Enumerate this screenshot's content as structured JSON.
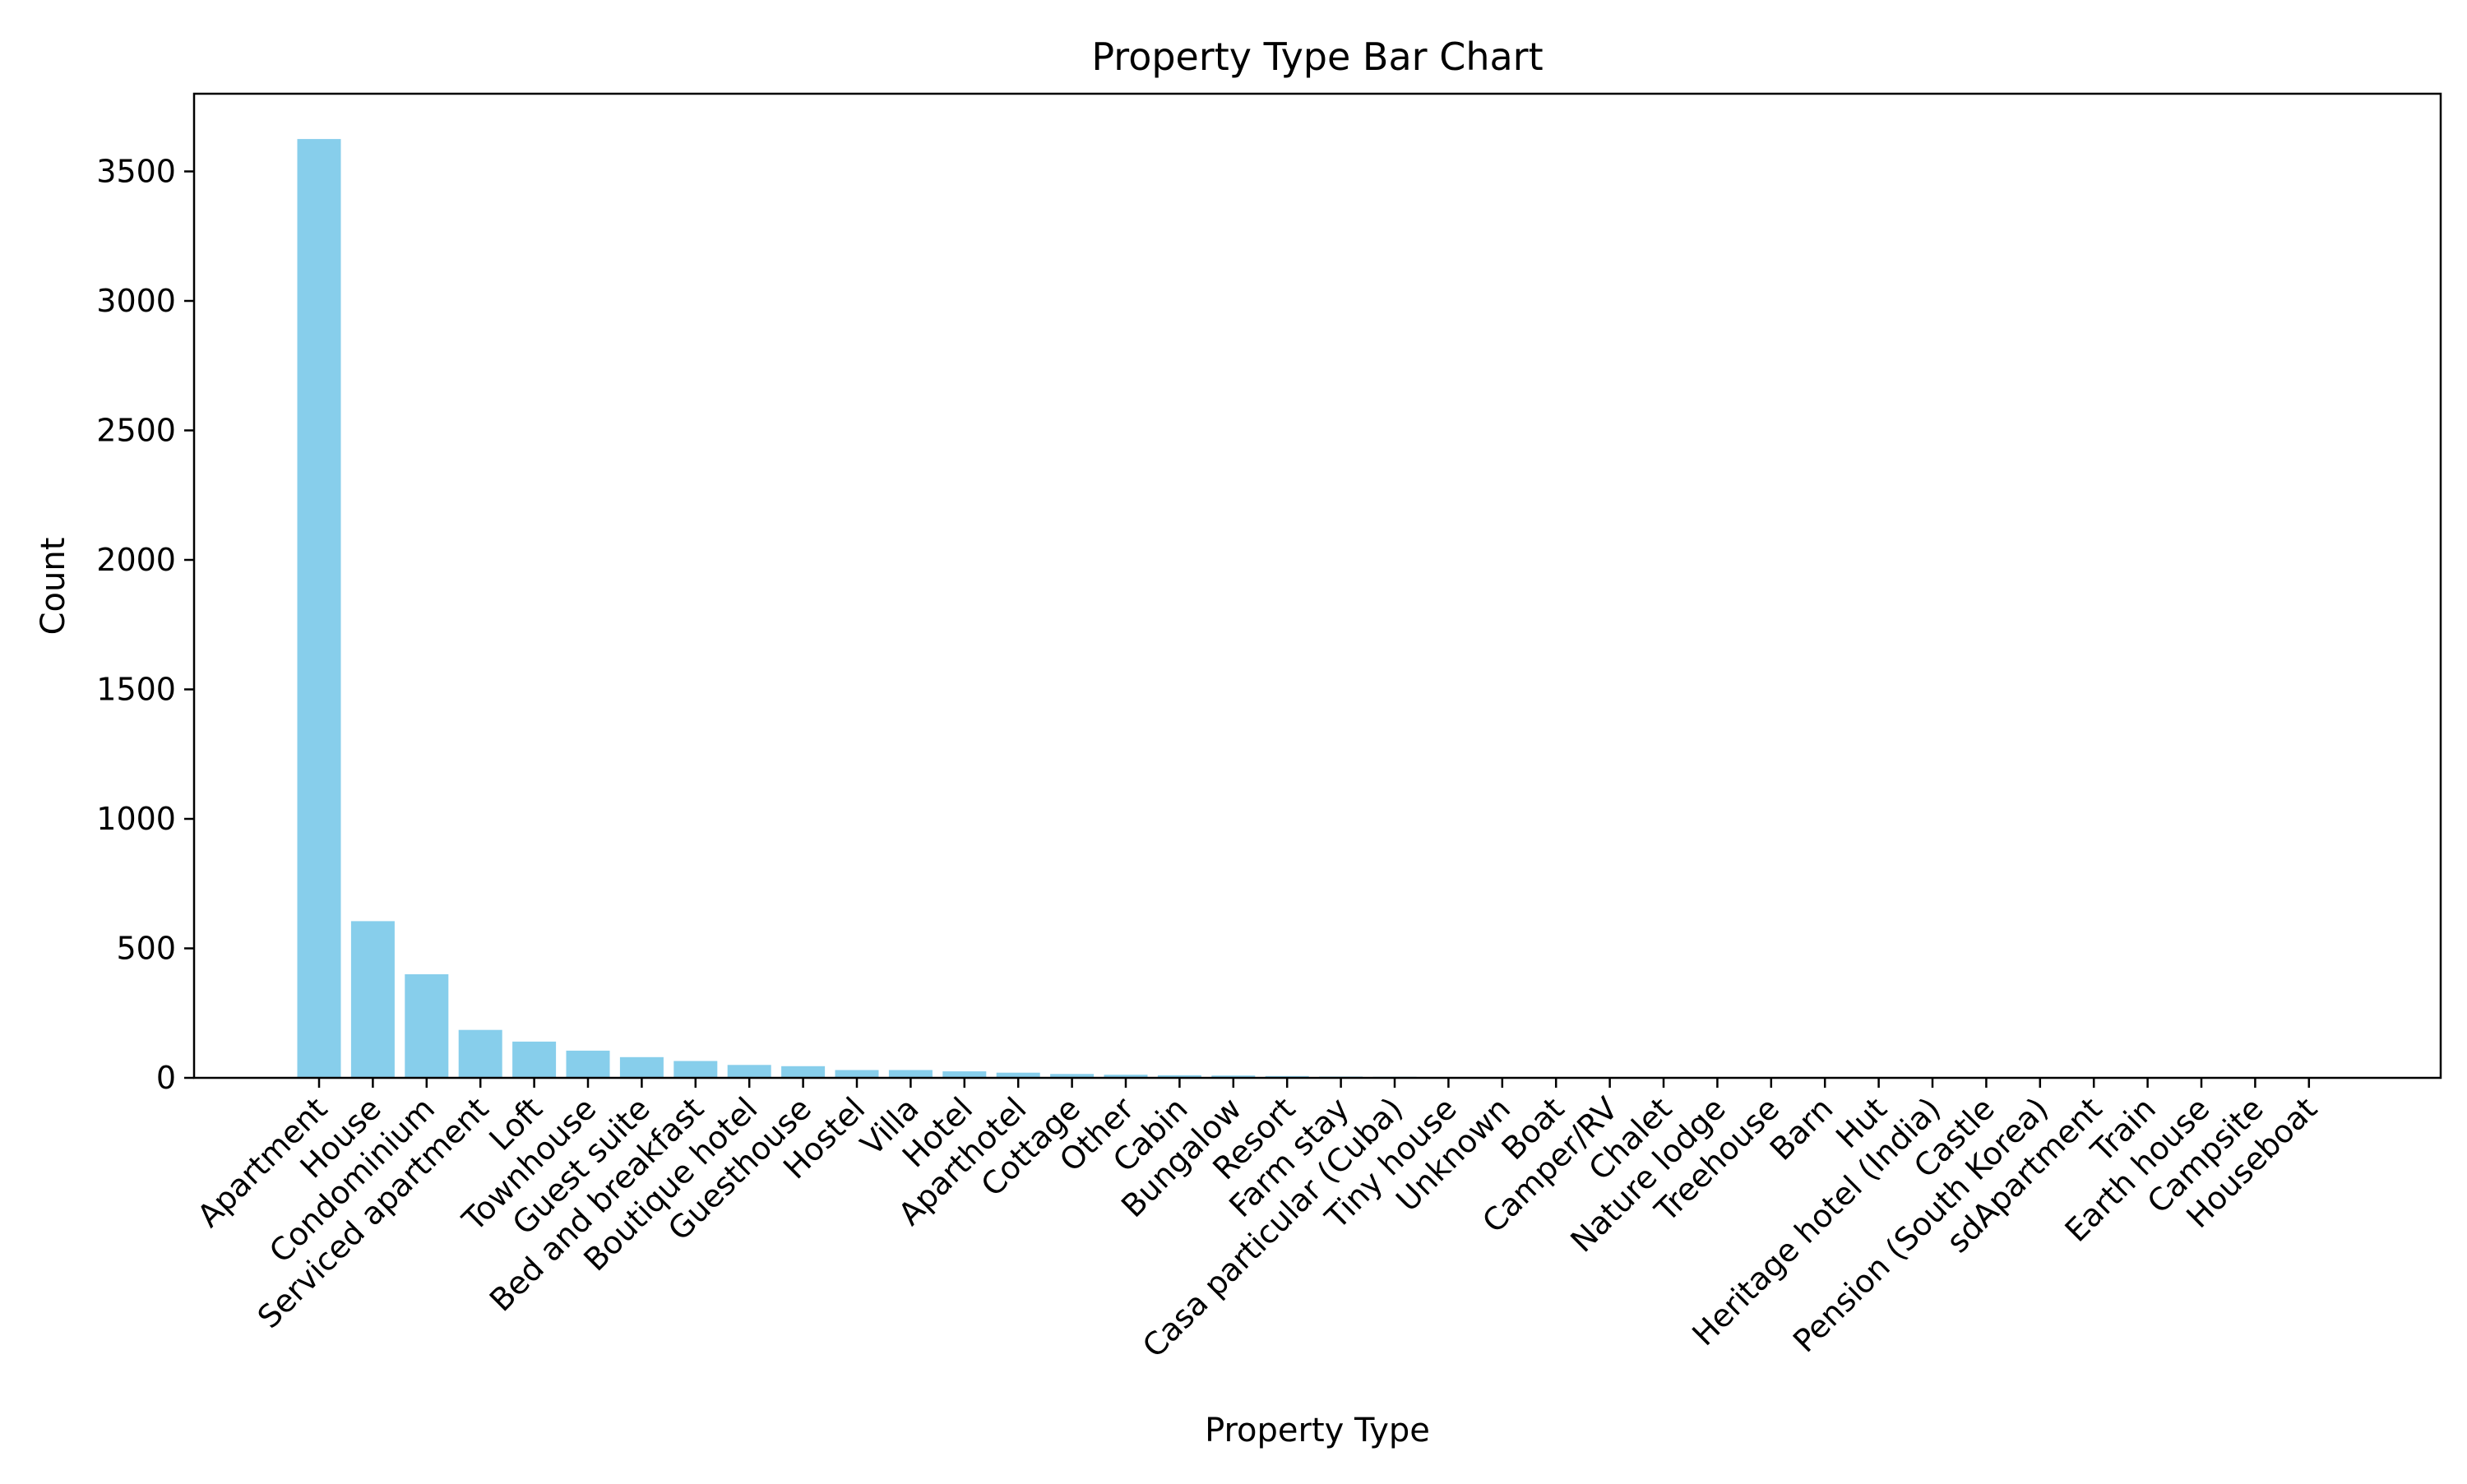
{
  "chart_data": {
    "type": "bar",
    "title": "Property Type Bar Chart",
    "xlabel": "Property Type",
    "ylabel": "Count",
    "ylim": [
      0,
      3800
    ],
    "yticks": [
      0,
      500,
      1000,
      1500,
      2000,
      2500,
      3000,
      3500
    ],
    "ytick_labels": [
      "0",
      "500",
      "1000",
      "1500",
      "2000",
      "2500",
      "3000",
      "3500"
    ],
    "grid": false,
    "bar_color": "#87CEEB",
    "categories": [
      "Apartment",
      "House",
      "Condominium",
      "Serviced apartment",
      "Loft",
      "Townhouse",
      "Guest suite",
      "Bed and breakfast",
      "Boutique hotel",
      "Guesthouse",
      "Hostel",
      "Villa",
      "Hotel",
      "Aparthotel",
      "Cottage",
      "Other",
      "Cabin",
      "Bungalow",
      "Resort",
      "Farm stay",
      "Casa particular (Cuba)",
      "Tiny house",
      "Unknown",
      "Boat",
      "Camper/RV",
      "Chalet",
      "Nature lodge",
      "Treehouse",
      "Barn",
      "Hut",
      "Heritage hotel (India)",
      "Castle",
      "Pension (South Korea)",
      "sdApartment",
      "Train",
      "Earth house",
      "Campsite",
      "Houseboat"
    ],
    "values": [
      3625,
      605,
      400,
      185,
      140,
      105,
      80,
      65,
      50,
      45,
      30,
      30,
      25,
      20,
      15,
      12,
      10,
      9,
      7,
      5,
      4,
      3,
      3,
      2,
      2,
      1,
      1,
      1,
      1,
      1,
      1,
      1,
      1,
      1,
      1,
      1,
      1,
      1
    ]
  }
}
